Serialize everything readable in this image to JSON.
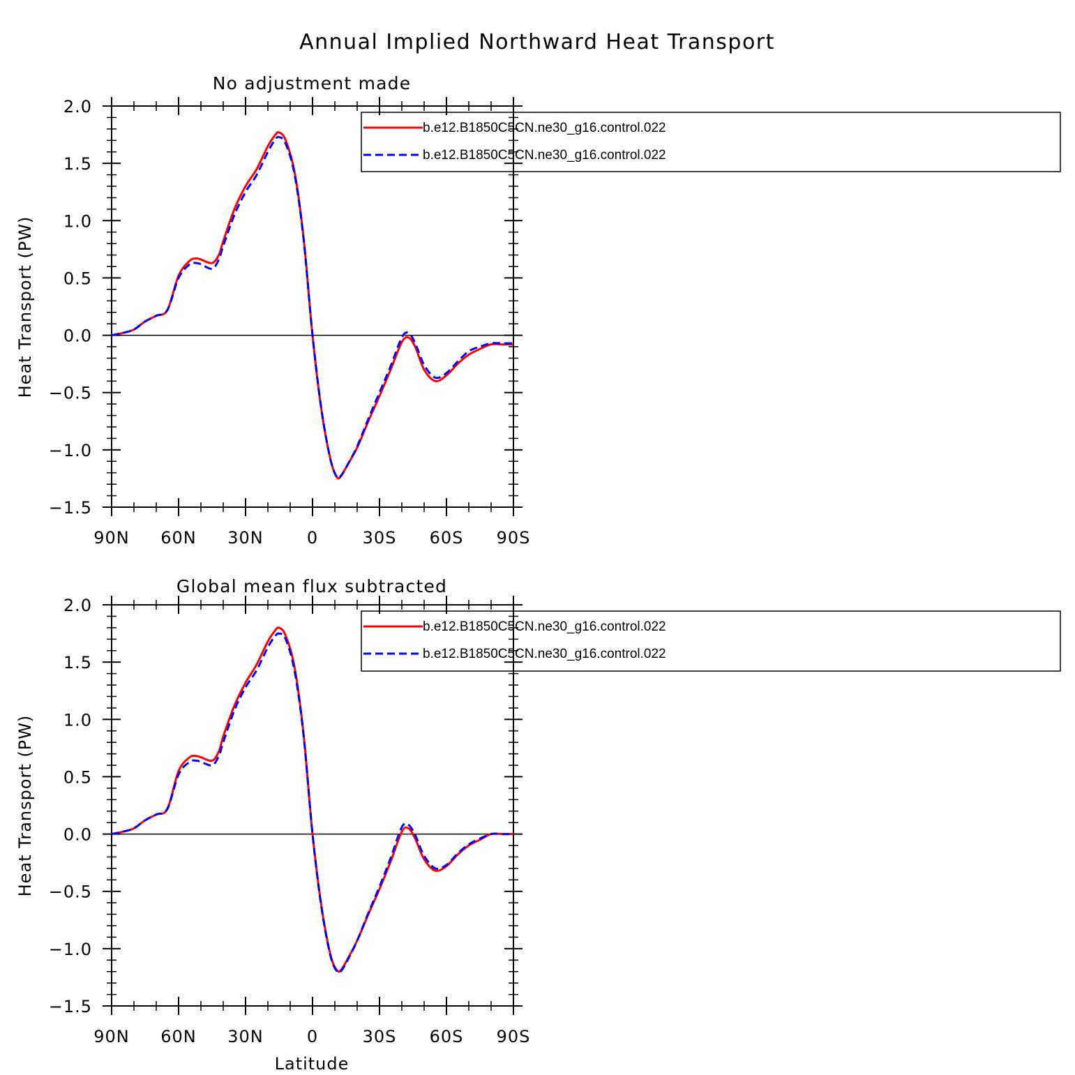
{
  "figure_title": "Annual Implied Northward Heat Transport",
  "chart_data": [
    {
      "type": "line",
      "title": "No adjustment made",
      "ylabel": "Heat Transport (PW)",
      "xlabel": "",
      "xlim": [
        90,
        -90
      ],
      "ylim": [
        -1.5,
        2.0
      ],
      "x_ticks": [
        90,
        60,
        30,
        0,
        -30,
        -60,
        -90
      ],
      "x_tick_labels": [
        "90N",
        "60N",
        "30N",
        "0",
        "30S",
        "60S",
        "90S"
      ],
      "y_ticks": [
        -1.5,
        -1.0,
        -0.5,
        0.0,
        0.5,
        1.0,
        1.5,
        2.0
      ],
      "y_tick_labels": [
        "−1.5",
        "−1.0",
        "−0.5",
        "0.0",
        "0.5",
        "1.0",
        "1.5",
        "2.0"
      ],
      "legend_position": "top-right",
      "series": [
        {
          "name": "b.e12.B1850C5CN.ne30_g16.control.022",
          "color": "#ff0000",
          "dash": "solid",
          "x": [
            90,
            85,
            80,
            75,
            70,
            65,
            60,
            55,
            52,
            50,
            45,
            42,
            40,
            35,
            30,
            25,
            20,
            17,
            15,
            12,
            8,
            4,
            0,
            -4,
            -8,
            -11,
            -13,
            -16,
            -20,
            -25,
            -30,
            -35,
            -40,
            -43,
            -46,
            -50,
            -55,
            -60,
            -65,
            -70,
            -75,
            -80,
            -85,
            -90
          ],
          "y": [
            0.0,
            0.02,
            0.05,
            0.12,
            0.17,
            0.22,
            0.52,
            0.65,
            0.67,
            0.66,
            0.63,
            0.7,
            0.82,
            1.1,
            1.3,
            1.45,
            1.65,
            1.74,
            1.77,
            1.7,
            1.42,
            0.85,
            0.0,
            -0.65,
            -1.08,
            -1.24,
            -1.22,
            -1.12,
            -0.98,
            -0.75,
            -0.53,
            -0.3,
            -0.06,
            -0.02,
            -0.1,
            -0.3,
            -0.4,
            -0.35,
            -0.25,
            -0.17,
            -0.12,
            -0.08,
            -0.08,
            -0.08
          ]
        },
        {
          "name": "b.e12.B1850C5CN.ne30_g16.control.022",
          "color": "#0000ff",
          "dash": "dashed",
          "x": [
            90,
            85,
            80,
            75,
            70,
            65,
            60,
            55,
            52,
            50,
            45,
            42,
            40,
            35,
            30,
            25,
            20,
            17,
            15,
            12,
            8,
            4,
            0,
            -4,
            -8,
            -11,
            -13,
            -16,
            -20,
            -25,
            -30,
            -35,
            -40,
            -43,
            -46,
            -50,
            -55,
            -60,
            -65,
            -70,
            -75,
            -80,
            -85,
            -90
          ],
          "y": [
            0.0,
            0.02,
            0.05,
            0.12,
            0.17,
            0.22,
            0.5,
            0.62,
            0.63,
            0.62,
            0.58,
            0.66,
            0.78,
            1.05,
            1.25,
            1.4,
            1.6,
            1.7,
            1.73,
            1.67,
            1.4,
            0.84,
            0.0,
            -0.65,
            -1.08,
            -1.24,
            -1.22,
            -1.12,
            -0.97,
            -0.73,
            -0.5,
            -0.27,
            -0.02,
            0.02,
            -0.07,
            -0.26,
            -0.37,
            -0.33,
            -0.23,
            -0.14,
            -0.1,
            -0.07,
            -0.07,
            -0.07
          ]
        }
      ]
    },
    {
      "type": "line",
      "title": "Global mean flux subtracted",
      "ylabel": "Heat Transport (PW)",
      "xlabel": "Latitude",
      "xlim": [
        90,
        -90
      ],
      "ylim": [
        -1.5,
        2.0
      ],
      "x_ticks": [
        90,
        60,
        30,
        0,
        -30,
        -60,
        -90
      ],
      "x_tick_labels": [
        "90N",
        "60N",
        "30N",
        "0",
        "30S",
        "60S",
        "90S"
      ],
      "y_ticks": [
        -1.5,
        -1.0,
        -0.5,
        0.0,
        0.5,
        1.0,
        1.5,
        2.0
      ],
      "y_tick_labels": [
        "−1.5",
        "−1.0",
        "−0.5",
        "0.0",
        "0.5",
        "1.0",
        "1.5",
        "2.0"
      ],
      "legend_position": "top-right",
      "series": [
        {
          "name": "b.e12.B1850C5CN.ne30_g16.control.022",
          "color": "#ff0000",
          "dash": "solid",
          "x": [
            90,
            85,
            80,
            75,
            70,
            65,
            60,
            55,
            52,
            50,
            45,
            42,
            40,
            35,
            30,
            25,
            20,
            17,
            15,
            12,
            8,
            4,
            0,
            -4,
            -8,
            -11,
            -13,
            -16,
            -20,
            -25,
            -30,
            -35,
            -40,
            -43,
            -46,
            -50,
            -55,
            -60,
            -65,
            -70,
            -75,
            -80,
            -85,
            -90
          ],
          "y": [
            0.0,
            0.02,
            0.05,
            0.12,
            0.17,
            0.22,
            0.55,
            0.67,
            0.68,
            0.67,
            0.64,
            0.72,
            0.85,
            1.12,
            1.32,
            1.48,
            1.68,
            1.77,
            1.8,
            1.73,
            1.45,
            0.87,
            0.0,
            -0.63,
            -1.05,
            -1.19,
            -1.18,
            -1.08,
            -0.93,
            -0.7,
            -0.48,
            -0.24,
            0.02,
            0.05,
            -0.04,
            -0.22,
            -0.32,
            -0.28,
            -0.18,
            -0.1,
            -0.05,
            -0.0,
            0.0,
            0.0
          ]
        },
        {
          "name": "b.e12.B1850C5CN.ne30_g16.control.022",
          "color": "#0000ff",
          "dash": "dashed",
          "x": [
            90,
            85,
            80,
            75,
            70,
            65,
            60,
            55,
            52,
            50,
            45,
            42,
            40,
            35,
            30,
            25,
            20,
            17,
            15,
            12,
            8,
            4,
            0,
            -4,
            -8,
            -11,
            -13,
            -16,
            -20,
            -25,
            -30,
            -35,
            -40,
            -43,
            -46,
            -50,
            -55,
            -60,
            -65,
            -70,
            -75,
            -80,
            -85,
            -90
          ],
          "y": [
            0.0,
            0.02,
            0.05,
            0.12,
            0.17,
            0.22,
            0.52,
            0.63,
            0.64,
            0.63,
            0.6,
            0.68,
            0.8,
            1.08,
            1.28,
            1.43,
            1.63,
            1.72,
            1.75,
            1.7,
            1.42,
            0.86,
            0.0,
            -0.64,
            -1.06,
            -1.2,
            -1.19,
            -1.09,
            -0.93,
            -0.69,
            -0.46,
            -0.21,
            0.06,
            0.08,
            -0.01,
            -0.19,
            -0.3,
            -0.27,
            -0.17,
            -0.09,
            -0.04,
            0.0,
            0.0,
            0.0
          ]
        }
      ]
    }
  ]
}
